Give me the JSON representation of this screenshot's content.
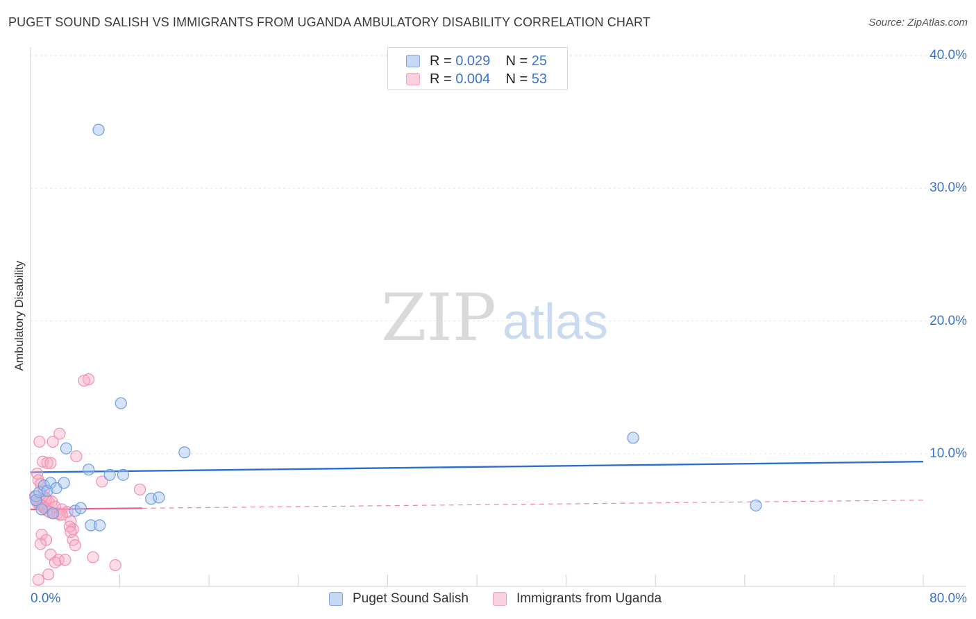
{
  "title": "PUGET SOUND SALISH VS IMMIGRANTS FROM UGANDA AMBULATORY DISABILITY CORRELATION CHART",
  "source": "Source: ZipAtlas.com",
  "watermark": {
    "zip": "ZIP",
    "atlas": "atlas"
  },
  "legend": {
    "series1": {
      "r_label": "R = ",
      "r_value": "0.029",
      "n_label": "N = ",
      "n_value": "25"
    },
    "series2": {
      "r_label": "R = ",
      "r_value": "0.004",
      "n_label": "N = ",
      "n_value": "53"
    }
  },
  "chart_data": {
    "type": "scatter",
    "title": "PUGET SOUND SALISH VS IMMIGRANTS FROM UGANDA AMBULATORY DISABILITY CORRELATION CHART",
    "xlabel": "",
    "ylabel": "Ambulatory Disability",
    "xlim": [
      0,
      80
    ],
    "ylim": [
      0,
      40
    ],
    "x_tick_labels": [
      "0.0%",
      "80.0%"
    ],
    "y_tick_labels": [
      "10.0%",
      "20.0%",
      "30.0%",
      "40.0%"
    ],
    "y_ticks": [
      10,
      20,
      30,
      40
    ],
    "grid": true,
    "legend_placement": "top-center",
    "series": [
      {
        "name": "Puget Sound Salish",
        "color": "#7fa8e8",
        "trend_color": "#2f6fcc",
        "trend": {
          "x": [
            0,
            80
          ],
          "y": [
            8.6,
            9.4
          ]
        },
        "x": [
          6.1,
          0.5,
          0.5,
          0.8,
          1.2,
          1.5,
          1.8,
          2.0,
          2.3,
          3.0,
          3.2,
          4.0,
          4.5,
          5.2,
          5.4,
          6.2,
          7.1,
          8.1,
          8.3,
          10.8,
          11.5,
          13.8,
          54.0,
          65.0,
          1.0
        ],
        "y": [
          34.4,
          6.8,
          6.5,
          7.1,
          7.6,
          7.2,
          7.8,
          5.5,
          7.4,
          7.8,
          10.4,
          5.7,
          5.9,
          8.8,
          4.6,
          4.6,
          8.4,
          13.8,
          8.4,
          6.6,
          6.7,
          10.1,
          11.2,
          6.1,
          5.8
        ]
      },
      {
        "name": "Immigrants from Uganda",
        "color": "#f5a3bd",
        "trend_color": "#e8648c",
        "trend": {
          "x": [
            0,
            80
          ],
          "y": [
            5.8,
            6.5
          ]
        },
        "x": [
          5.2,
          4.8,
          4.1,
          2.6,
          0.8,
          1.1,
          1.5,
          1.8,
          2.0,
          0.6,
          0.7,
          0.9,
          1.2,
          1.3,
          1.4,
          1.6,
          1.9,
          2.2,
          2.8,
          3.3,
          3.6,
          3.8,
          0.4,
          0.5,
          0.6,
          0.8,
          1.0,
          1.1,
          1.2,
          1.3,
          1.5,
          1.7,
          2.1,
          2.4,
          2.6,
          2.8,
          3.5,
          3.6,
          3.8,
          4.0,
          5.6,
          6.4,
          7.6,
          9.8,
          1.0,
          1.4,
          0.9,
          1.8,
          2.5,
          3.1,
          2.2,
          1.6,
          0.7
        ],
        "y": [
          15.6,
          15.5,
          9.8,
          11.5,
          10.9,
          9.4,
          9.3,
          9.3,
          10.9,
          8.5,
          8.0,
          7.7,
          7.2,
          6.7,
          6.6,
          6.4,
          6.4,
          6.0,
          5.8,
          5.6,
          4.9,
          4.3,
          6.8,
          6.5,
          6.3,
          6.2,
          6.1,
          6.0,
          5.9,
          5.9,
          5.7,
          5.6,
          5.5,
          5.5,
          5.4,
          5.4,
          4.5,
          4.1,
          3.5,
          3.1,
          2.2,
          7.9,
          1.6,
          7.3,
          3.9,
          3.5,
          3.2,
          2.4,
          2.0,
          2.0,
          1.8,
          0.9,
          0.5
        ]
      }
    ]
  }
}
